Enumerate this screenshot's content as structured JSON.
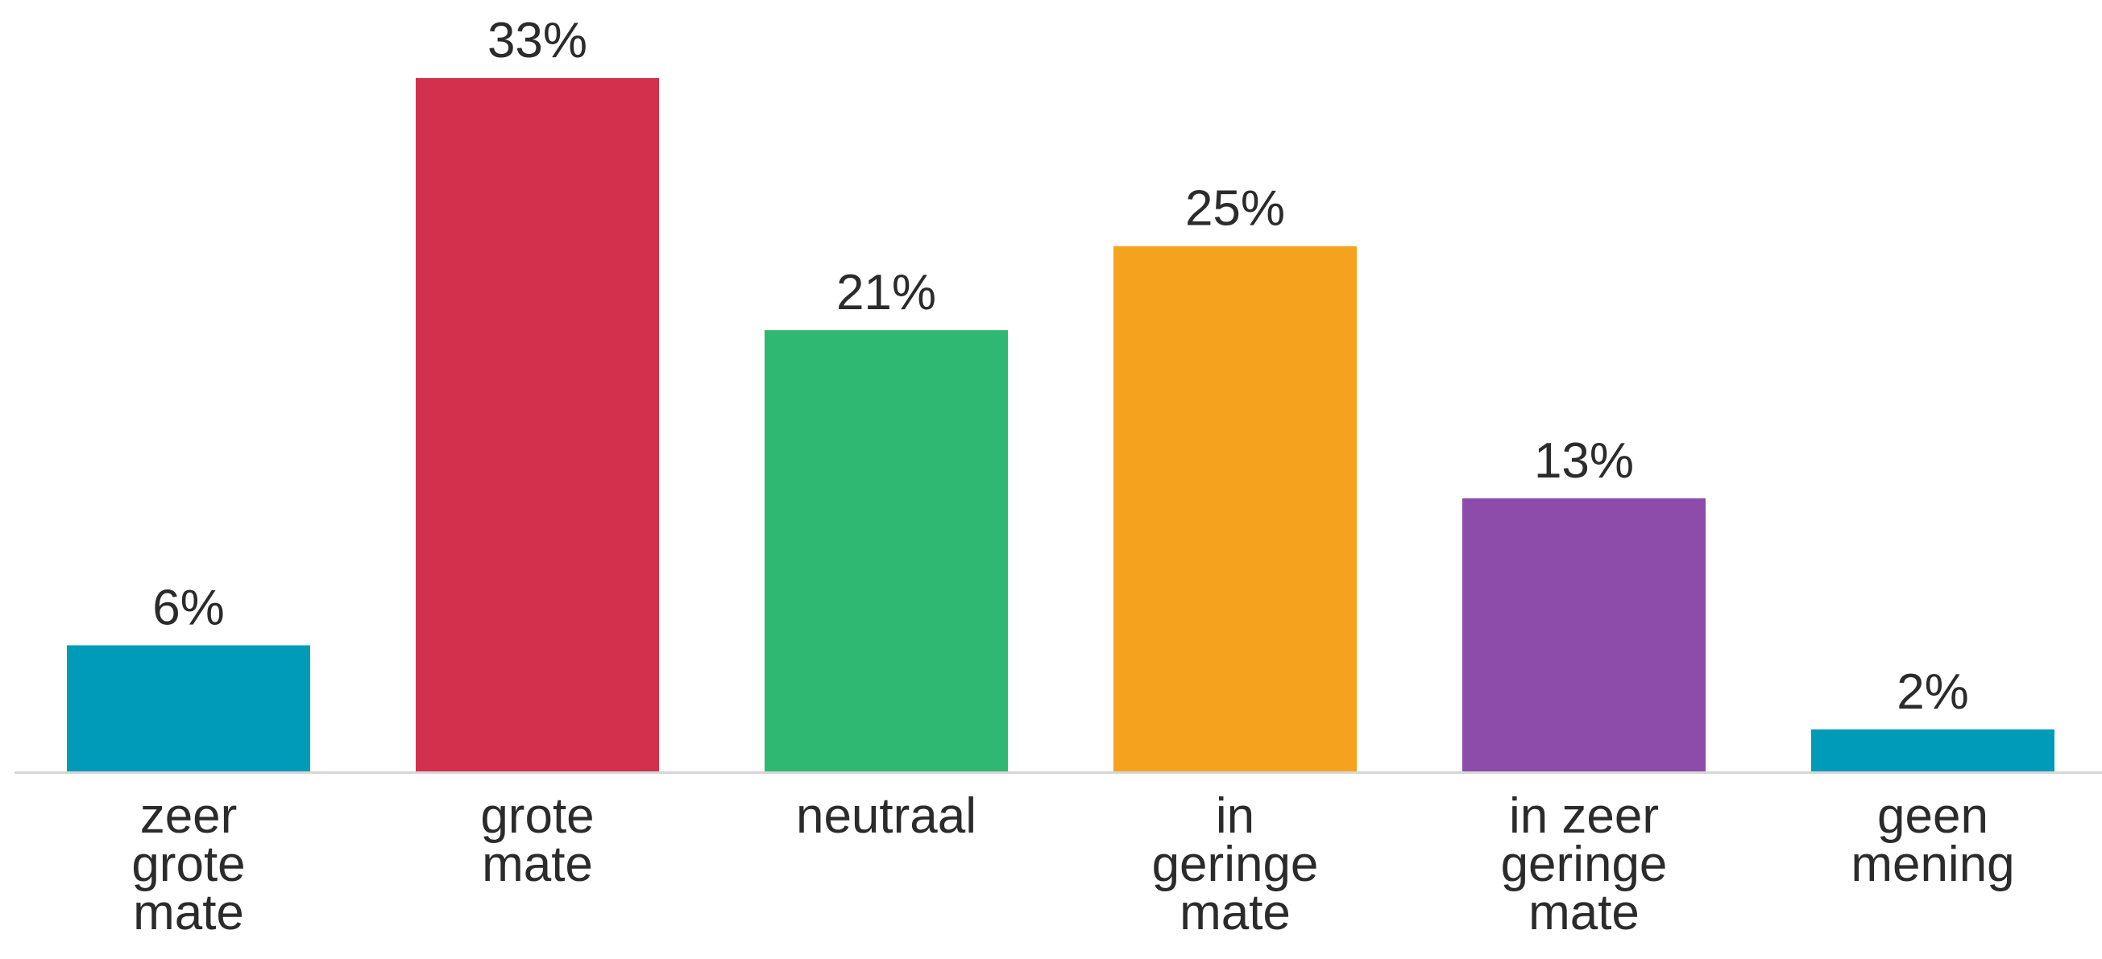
{
  "chart_data": {
    "type": "bar",
    "categories": [
      [
        "zeer",
        "grote",
        "mate"
      ],
      [
        "grote",
        "mate"
      ],
      [
        "neutraal"
      ],
      [
        "in",
        "geringe",
        "mate"
      ],
      [
        "in zeer",
        "geringe",
        "mate"
      ],
      [
        "geen",
        "mening"
      ]
    ],
    "values": [
      6,
      33,
      21,
      25,
      13,
      2
    ],
    "value_labels": [
      "6%",
      "33%",
      "21%",
      "25%",
      "13%",
      "2%"
    ],
    "colors": [
      "#009bb9",
      "#d3304e",
      "#2eb872",
      "#f5a31f",
      "#8e4caa",
      "#009bb9"
    ],
    "ylim": [
      0,
      33
    ],
    "grid": false,
    "baseline_color": "#d6d6d6"
  }
}
